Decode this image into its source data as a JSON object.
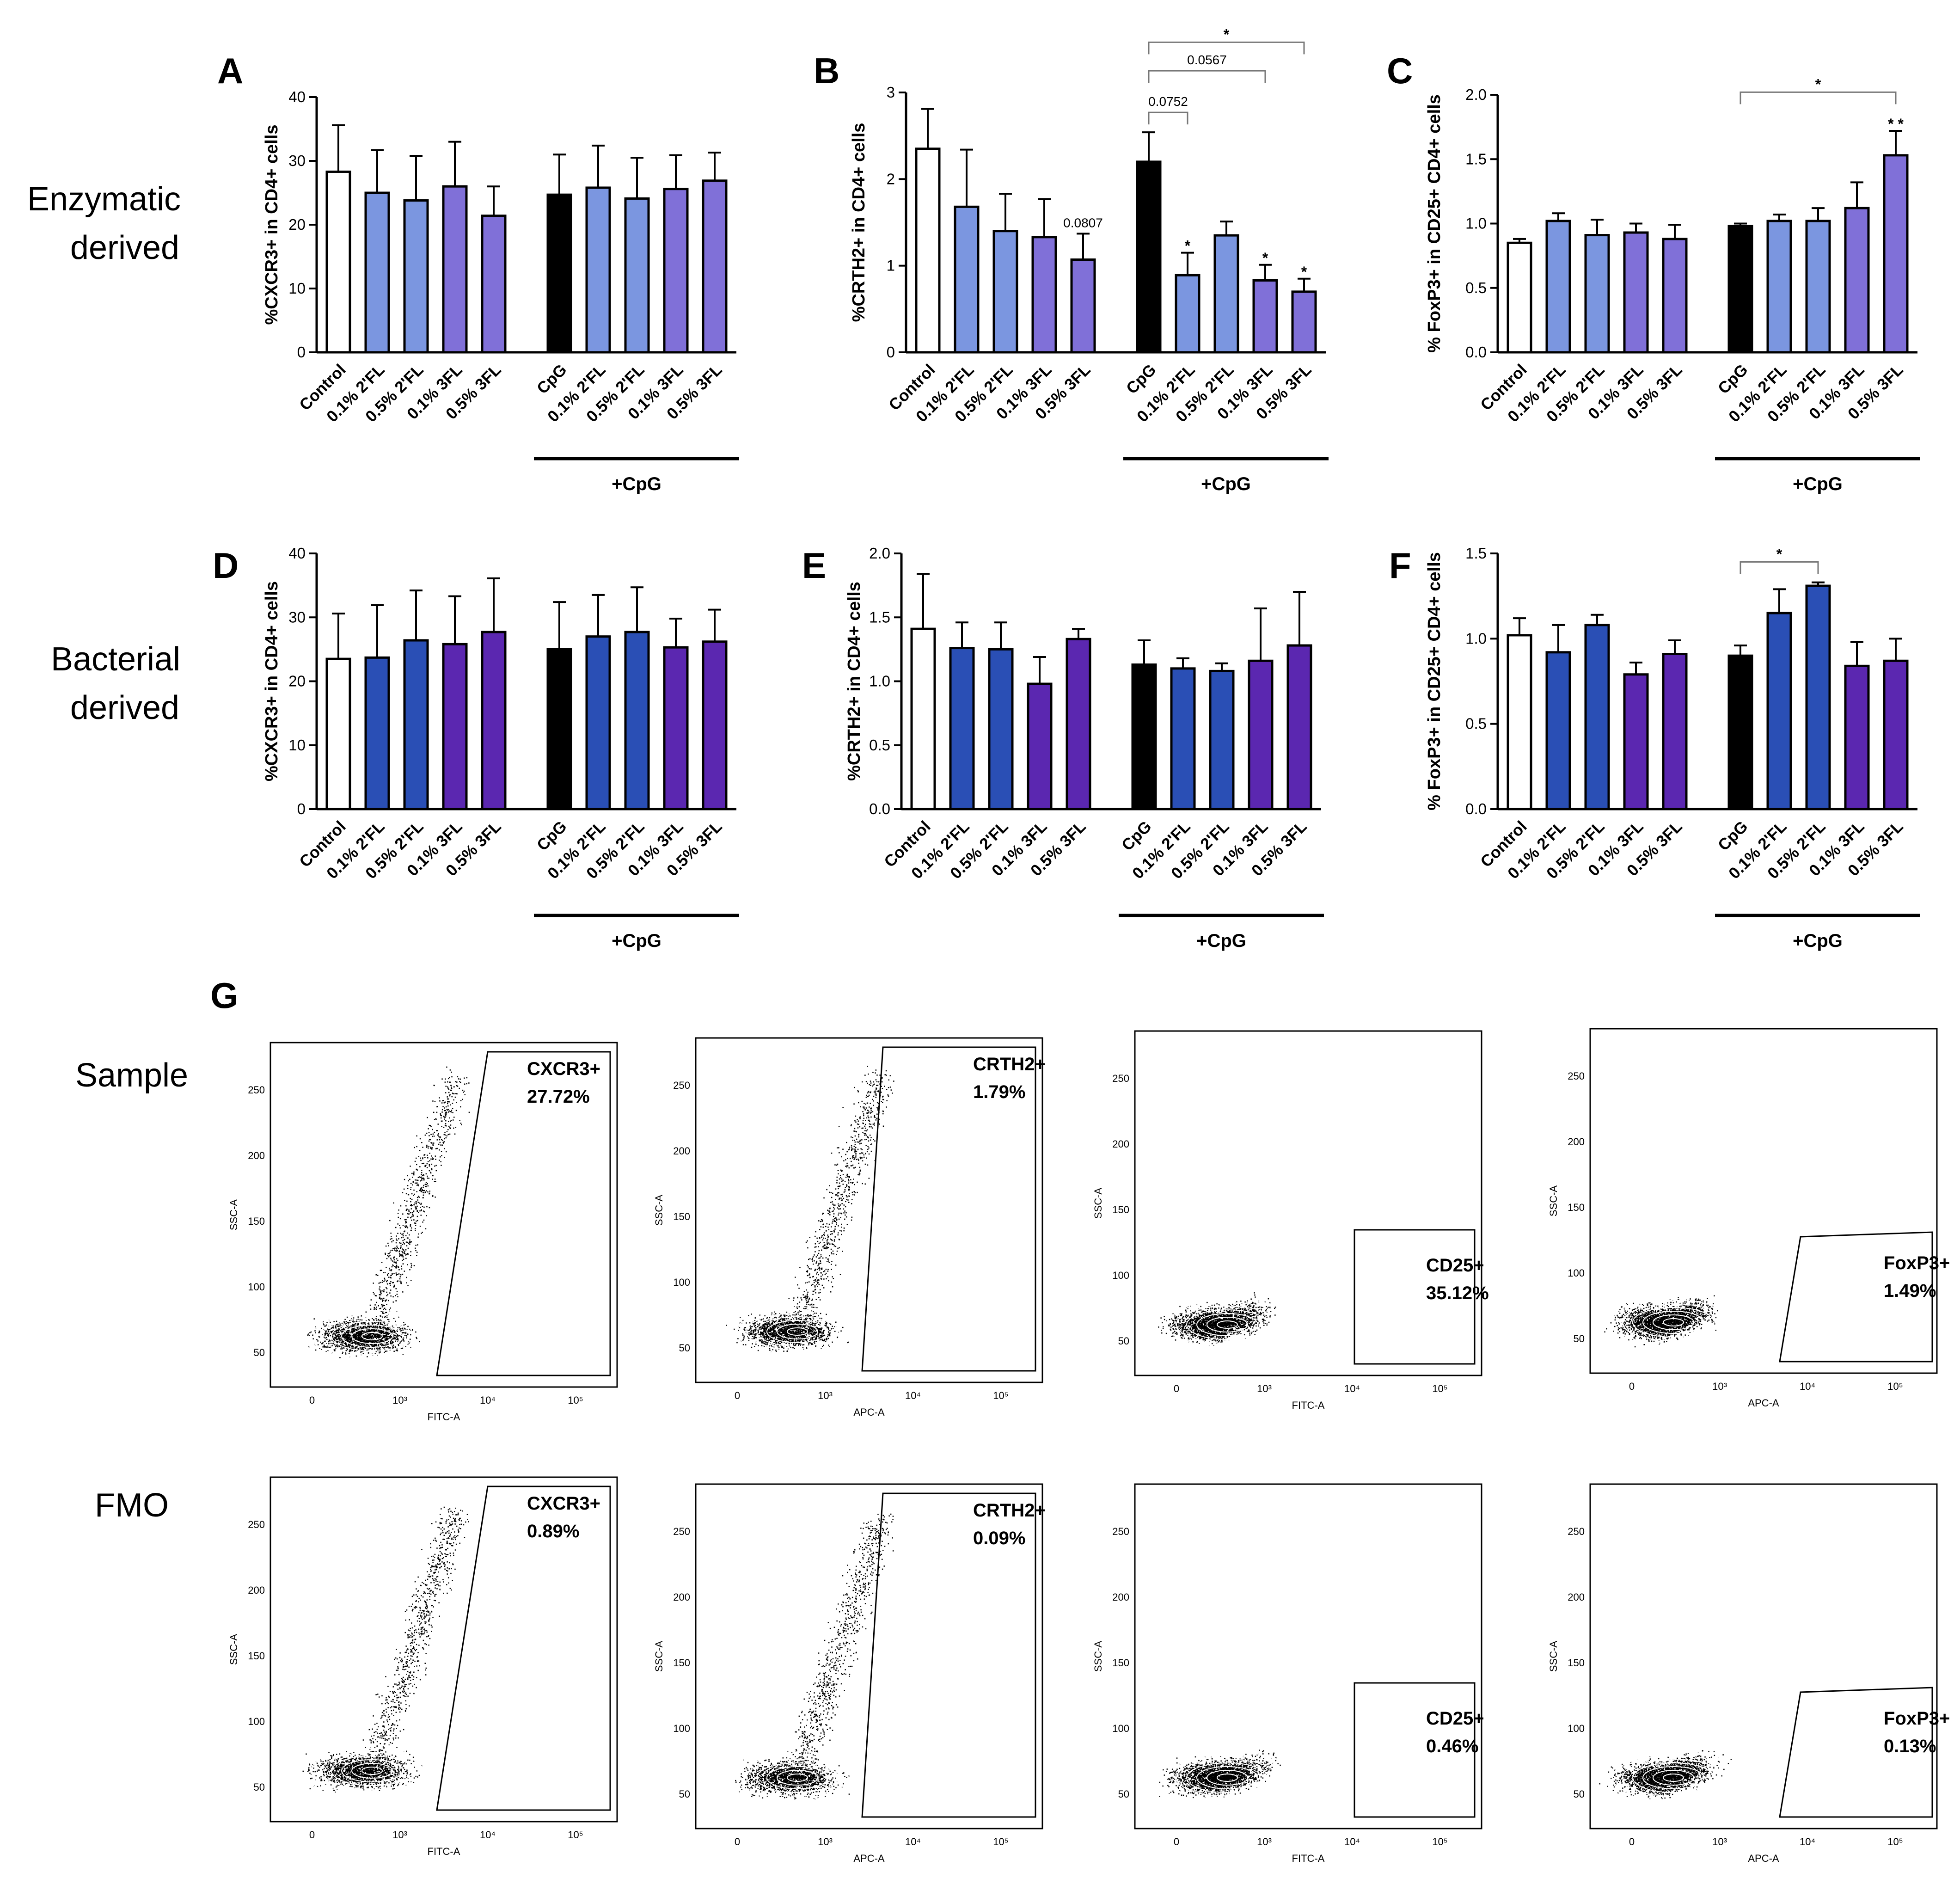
{
  "colors": {
    "control": "#ffffff",
    "cpg": "#000000",
    "enz_2fl": "#7b96e0",
    "enz_3fl": "#8070d8",
    "bac_2fl": "#2a4fb5",
    "bac_3fl": "#5b27b0"
  },
  "row_labels": {
    "enzymatic": [
      "Enzymatic",
      "derived"
    ],
    "bacterial": [
      "Bacterial",
      "derived"
    ],
    "sample": "Sample",
    "fmo": "FMO"
  },
  "panel_g_label": "G",
  "chart_data": [
    {
      "panel": "A",
      "type": "bar",
      "ylabel": "%CXCR3+ in CD4+ cells",
      "ylim": [
        0,
        40
      ],
      "yticks": [
        "0",
        "10",
        "20",
        "30",
        "40"
      ],
      "categories": [
        "Control",
        "0.1% 2'FL",
        "0.5% 2'FL",
        "0.1% 3FL",
        "0.5% 3FL",
        "CpG",
        "0.1% 2'FL",
        "0.5% 2'FL",
        "0.1% 3FL",
        "0.5% 3FL"
      ],
      "values": [
        28.3,
        25.0,
        23.8,
        26.0,
        21.4,
        24.7,
        25.8,
        24.1,
        25.6,
        26.9
      ],
      "errors": [
        7.3,
        6.7,
        7.0,
        7.0,
        4.6,
        6.3,
        6.6,
        6.4,
        5.3,
        4.4
      ],
      "colors": [
        "control",
        "enz_2fl",
        "enz_2fl",
        "enz_3fl",
        "enz_3fl",
        "cpg",
        "enz_2fl",
        "enz_2fl",
        "enz_3fl",
        "enz_3fl"
      ],
      "group_label": "+CpG",
      "bar_annotations": [],
      "brackets": []
    },
    {
      "panel": "B",
      "type": "bar",
      "ylabel": "%CRTH2+ in CD4+ cells",
      "ylim": [
        0,
        3
      ],
      "yticks": [
        "0",
        "1",
        "2",
        "3"
      ],
      "categories": [
        "Control",
        "0.1% 2'FL",
        "0.5% 2'FL",
        "0.1% 3FL",
        "0.5% 3FL",
        "CpG",
        "0.1% 2'FL",
        "0.5% 2'FL",
        "0.1% 3FL",
        "0.5% 3FL"
      ],
      "values": [
        2.35,
        1.68,
        1.4,
        1.33,
        1.07,
        2.2,
        0.89,
        1.35,
        0.83,
        0.7
      ],
      "errors": [
        0.46,
        0.66,
        0.43,
        0.44,
        0.3,
        0.34,
        0.26,
        0.16,
        0.18,
        0.15
      ],
      "colors": [
        "control",
        "enz_2fl",
        "enz_2fl",
        "enz_3fl",
        "enz_3fl",
        "cpg",
        "enz_2fl",
        "enz_2fl",
        "enz_3fl",
        "enz_3fl"
      ],
      "group_label": "+CpG",
      "bar_annotations": [
        {
          "bar": 4,
          "text": "0.0807",
          "kind": "ann"
        },
        {
          "bar": 6,
          "text": "*",
          "kind": "star"
        },
        {
          "bar": 8,
          "text": "*",
          "kind": "star"
        },
        {
          "bar": 9,
          "text": "*",
          "kind": "star"
        }
      ],
      "brackets": [
        {
          "from": 5,
          "to": 6,
          "text": "0.0752",
          "level": 2.77,
          "kind": "ann"
        },
        {
          "from": 5,
          "to": 8,
          "text": "0.0567",
          "level": 3.25,
          "kind": "ann"
        },
        {
          "from": 5,
          "to": 9,
          "text": "*",
          "level": 3.58,
          "kind": "star"
        }
      ]
    },
    {
      "panel": "C",
      "type": "bar",
      "ylabel": "% FoxP3+ in CD25+ CD4+ cells",
      "ylim": [
        0,
        2.0
      ],
      "yticks": [
        "0.0",
        "0.5",
        "1.0",
        "1.5",
        "2.0"
      ],
      "categories": [
        "Control",
        "0.1% 2'FL",
        "0.5% 2'FL",
        "0.1% 3FL",
        "0.5% 3FL",
        "CpG",
        "0.1% 2'FL",
        "0.5% 2'FL",
        "0.1% 3FL",
        "0.5% 3FL"
      ],
      "values": [
        0.85,
        1.02,
        0.91,
        0.93,
        0.88,
        0.98,
        1.02,
        1.02,
        1.12,
        1.53
      ],
      "errors": [
        0.03,
        0.06,
        0.12,
        0.07,
        0.11,
        0.02,
        0.05,
        0.1,
        0.2,
        0.19
      ],
      "colors": [
        "control",
        "enz_2fl",
        "enz_2fl",
        "enz_3fl",
        "enz_3fl",
        "cpg",
        "enz_2fl",
        "enz_2fl",
        "enz_3fl",
        "enz_3fl"
      ],
      "group_label": "+CpG",
      "bar_annotations": [
        {
          "bar": 9,
          "text": "* *",
          "kind": "star"
        }
      ],
      "brackets": [
        {
          "from": 5,
          "to": 9,
          "text": "*",
          "level": 2.02,
          "kind": "star"
        }
      ]
    },
    {
      "panel": "D",
      "type": "bar",
      "ylabel": "%CXCR3+ in CD4+ cells",
      "ylim": [
        0,
        40
      ],
      "yticks": [
        "0",
        "10",
        "20",
        "30",
        "40"
      ],
      "categories": [
        "Control",
        "0.1% 2'FL",
        "0.5% 2'FL",
        "0.1% 3FL",
        "0.5% 3FL",
        "CpG",
        "0.1% 2'FL",
        "0.5% 2'FL",
        "0.1% 3FL",
        "0.5% 3FL"
      ],
      "values": [
        23.5,
        23.7,
        26.4,
        25.8,
        27.7,
        25.0,
        27.0,
        27.7,
        25.3,
        26.2
      ],
      "errors": [
        7.1,
        8.2,
        7.8,
        7.5,
        8.4,
        7.4,
        6.5,
        7.0,
        4.5,
        5.0
      ],
      "colors": [
        "control",
        "bac_2fl",
        "bac_2fl",
        "bac_3fl",
        "bac_3fl",
        "cpg",
        "bac_2fl",
        "bac_2fl",
        "bac_3fl",
        "bac_3fl"
      ],
      "group_label": "+CpG",
      "bar_annotations": [],
      "brackets": []
    },
    {
      "panel": "E",
      "type": "bar",
      "ylabel": "%CRTH2+ in CD4+ cells",
      "ylim": [
        0,
        2.0
      ],
      "yticks": [
        "0.0",
        "0.5",
        "1.0",
        "1.5",
        "2.0"
      ],
      "categories": [
        "Control",
        "0.1% 2'FL",
        "0.5% 2'FL",
        "0.1% 3FL",
        "0.5% 3FL",
        "CpG",
        "0.1% 2'FL",
        "0.5% 2'FL",
        "0.1% 3FL",
        "0.5% 3FL"
      ],
      "values": [
        1.41,
        1.26,
        1.25,
        0.98,
        1.33,
        1.13,
        1.1,
        1.08,
        1.16,
        1.28
      ],
      "errors": [
        0.43,
        0.2,
        0.21,
        0.21,
        0.08,
        0.19,
        0.08,
        0.06,
        0.41,
        0.42
      ],
      "colors": [
        "control",
        "bac_2fl",
        "bac_2fl",
        "bac_3fl",
        "bac_3fl",
        "cpg",
        "bac_2fl",
        "bac_2fl",
        "bac_3fl",
        "bac_3fl"
      ],
      "group_label": "+CpG",
      "bar_annotations": [],
      "brackets": []
    },
    {
      "panel": "F",
      "type": "bar",
      "ylabel": "% FoxP3+ in CD25+ CD4+ cells",
      "ylim": [
        0,
        1.5
      ],
      "yticks": [
        "0.0",
        "0.5",
        "1.0",
        "1.5"
      ],
      "categories": [
        "Control",
        "0.1% 2'FL",
        "0.5% 2'FL",
        "0.1% 3FL",
        "0.5% 3FL",
        "CpG",
        "0.1% 2'FL",
        "0.5% 2'FL",
        "0.1% 3FL",
        "0.5% 3FL"
      ],
      "values": [
        1.02,
        0.92,
        1.08,
        0.79,
        0.91,
        0.9,
        1.15,
        1.31,
        0.84,
        0.87
      ],
      "errors": [
        0.1,
        0.16,
        0.06,
        0.07,
        0.08,
        0.06,
        0.14,
        0.02,
        0.14,
        0.13
      ],
      "colors": [
        "control",
        "bac_2fl",
        "bac_2fl",
        "bac_3fl",
        "bac_3fl",
        "cpg",
        "bac_2fl",
        "bac_2fl",
        "bac_3fl",
        "bac_3fl"
      ],
      "group_label": "+CpG",
      "bar_annotations": [],
      "brackets": [
        {
          "from": 5,
          "to": 7,
          "text": "*",
          "level": 1.45,
          "kind": "star"
        }
      ]
    }
  ],
  "flow_plots": [
    {
      "row": "sample",
      "marker": "CXCR3+",
      "value": "27.72%",
      "xlabel": "FITC-A",
      "ylabel": "SSC-A",
      "yticks": [
        "50",
        "100",
        "150",
        "200",
        "250"
      ],
      "xticks": [
        "0",
        "10³",
        "10⁴",
        "10⁵"
      ]
    },
    {
      "row": "sample",
      "marker": "CRTH2+",
      "value": "1.79%",
      "xlabel": "APC-A",
      "ylabel": "SSC-A",
      "yticks": [
        "50",
        "100",
        "150",
        "200",
        "250"
      ],
      "xticks": [
        "0",
        "10³",
        "10⁴",
        "10⁵"
      ]
    },
    {
      "row": "sample",
      "marker": "CD25+",
      "value": "35.12%",
      "xlabel": "FITC-A",
      "ylabel": "SSC-A",
      "yticks": [
        "50",
        "100",
        "150",
        "200",
        "250"
      ],
      "xticks": [
        "0",
        "10³",
        "10⁴",
        "10⁵"
      ]
    },
    {
      "row": "sample",
      "marker": "FoxP3+",
      "value": "1.49%",
      "xlabel": "APC-A",
      "ylabel": "SSC-A",
      "yticks": [
        "50",
        "100",
        "150",
        "200",
        "250"
      ],
      "xticks": [
        "0",
        "10³",
        "10⁴",
        "10⁵"
      ]
    },
    {
      "row": "fmo",
      "marker": "CXCR3+",
      "value": "0.89%",
      "xlabel": "FITC-A",
      "ylabel": "SSC-A",
      "yticks": [
        "50",
        "100",
        "150",
        "200",
        "250"
      ],
      "xticks": [
        "0",
        "10³",
        "10⁴",
        "10⁵"
      ]
    },
    {
      "row": "fmo",
      "marker": "CRTH2+",
      "value": "0.09%",
      "xlabel": "APC-A",
      "ylabel": "SSC-A",
      "yticks": [
        "50",
        "100",
        "150",
        "200",
        "250"
      ],
      "xticks": [
        "0",
        "10³",
        "10⁴",
        "10⁵"
      ]
    },
    {
      "row": "fmo",
      "marker": "CD25+",
      "value": "0.46%",
      "xlabel": "FITC-A",
      "ylabel": "SSC-A",
      "yticks": [
        "50",
        "100",
        "150",
        "200",
        "250"
      ],
      "xticks": [
        "0",
        "10³",
        "10⁴",
        "10⁵"
      ]
    },
    {
      "row": "fmo",
      "marker": "FoxP3+",
      "value": "0.13%",
      "xlabel": "APC-A",
      "ylabel": "SSC-A",
      "yticks": [
        "50",
        "100",
        "150",
        "200",
        "250"
      ],
      "xticks": [
        "0",
        "10³",
        "10⁴",
        "10⁵"
      ]
    }
  ]
}
